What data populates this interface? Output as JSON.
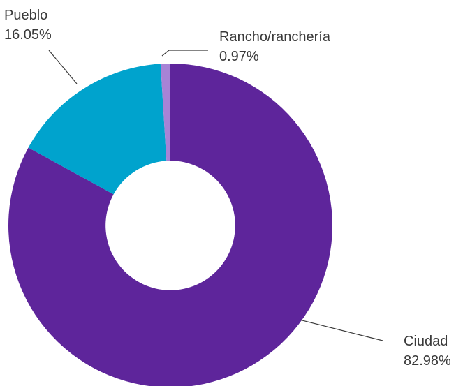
{
  "chart_data": {
    "type": "pie",
    "title": "",
    "series": [
      {
        "name": "Ciudad",
        "value": 82.98,
        "label": "82.98%",
        "color": "#5e259b"
      },
      {
        "name": "Pueblo",
        "value": 16.05,
        "label": "16.05%",
        "color": "#00a3cd"
      },
      {
        "name": "Rancho/ranchería",
        "value": 0.97,
        "label": "0.97%",
        "color": "#a783d6"
      }
    ],
    "legend": "none",
    "inner_radius_ratio": 0.4
  }
}
